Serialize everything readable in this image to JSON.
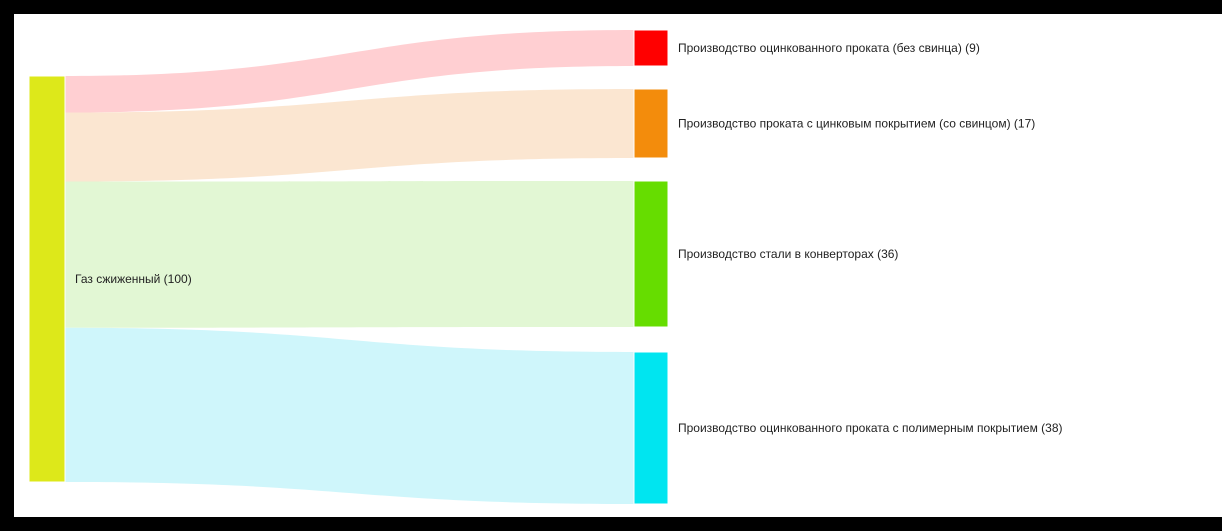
{
  "sankey": {
    "source": {
      "name": "Газ сжиженный",
      "value": 100,
      "label": "Газ сжиженный (100)",
      "color": "#dde81a"
    },
    "targets": [
      {
        "name": "Производство оцинкованного проката (без свинца)",
        "value": 9,
        "label": "Производство оцинкованного проката (без свинца) (9)",
        "color": "#ff0000",
        "link_color": "#ffccd0"
      },
      {
        "name": "Производство проката с цинковым покрытием (со свинцом)",
        "value": 17,
        "label": "Производство проката с цинковым покрытием (со свинцом) (17)",
        "color": "#f38c0c",
        "link_color": "#fbe5cf"
      },
      {
        "name": "Производство стали в конверторах",
        "value": 36,
        "label": "Производство стали в конверторах (36)",
        "color": "#66dd00",
        "link_color": "#e0f7d2"
      },
      {
        "name": "Производство оцинкованного проката с полимерным покрытием",
        "value": 38,
        "label": "Производство оцинкованного проката с полимерным покрытием (38)",
        "color": "#00e5f0",
        "link_color": "#ccf6fb"
      }
    ]
  }
}
